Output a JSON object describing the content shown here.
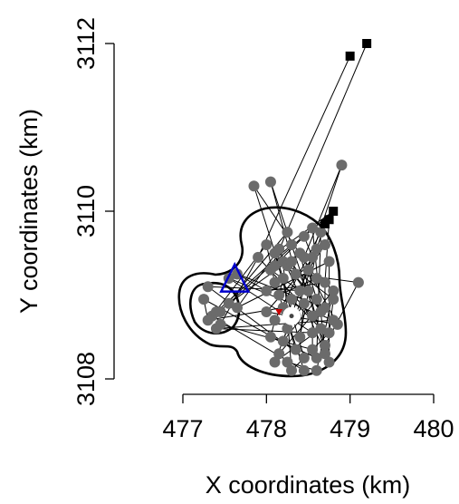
{
  "chart_data": {
    "type": "scatter",
    "xlabel": "X coordinates (km)",
    "ylabel": "Y coordinates (km)",
    "xlim": [
      476.95,
      480.05
    ],
    "ylim": [
      3107.95,
      3112.2
    ],
    "xticks": [
      477,
      478,
      479,
      480
    ],
    "yticks": [
      3108,
      3110,
      3112
    ],
    "xtick_labels": [
      "477",
      "478",
      "479",
      "480"
    ],
    "ytick_labels": [
      "3108",
      "3110",
      "3112"
    ],
    "grid": false,
    "colors": {
      "fixes": "#6b6b6b",
      "dispersal_fixes": "#000000",
      "site_marker": "#0000cc",
      "den_marker": "#cc0000",
      "contour": "#000000"
    },
    "series": [
      {
        "marker": "circle",
        "points": [
          [
            477.85,
            3110.3
          ],
          [
            478.05,
            3110.35
          ],
          [
            477.9,
            3109.45
          ],
          [
            478.05,
            3109.3
          ],
          [
            478.1,
            3109.5
          ],
          [
            478.2,
            3109.4
          ],
          [
            478.25,
            3109.35
          ],
          [
            478.0,
            3109.6
          ],
          [
            478.15,
            3109.55
          ],
          [
            478.3,
            3109.6
          ],
          [
            478.45,
            3109.7
          ],
          [
            478.55,
            3109.45
          ],
          [
            478.5,
            3109.3
          ],
          [
            478.6,
            3109.2
          ],
          [
            478.7,
            3109.15
          ],
          [
            478.8,
            3109.05
          ],
          [
            478.75,
            3109.4
          ],
          [
            478.7,
            3109.6
          ],
          [
            478.6,
            3109.55
          ],
          [
            478.4,
            3109.5
          ],
          [
            478.35,
            3109.25
          ],
          [
            478.2,
            3109.2
          ],
          [
            478.1,
            3109.15
          ],
          [
            478.0,
            3109.05
          ],
          [
            478.15,
            3109.0
          ],
          [
            478.3,
            3108.95
          ],
          [
            478.45,
            3108.9
          ],
          [
            478.55,
            3108.75
          ],
          [
            478.65,
            3108.6
          ],
          [
            478.75,
            3108.55
          ],
          [
            478.8,
            3108.7
          ],
          [
            478.7,
            3108.85
          ],
          [
            478.6,
            3108.95
          ],
          [
            478.5,
            3109.05
          ],
          [
            478.4,
            3109.05
          ],
          [
            478.35,
            3108.75
          ],
          [
            478.25,
            3108.6
          ],
          [
            478.2,
            3108.45
          ],
          [
            478.15,
            3108.3
          ],
          [
            478.25,
            3108.2
          ],
          [
            478.35,
            3108.35
          ],
          [
            478.45,
            3108.25
          ],
          [
            478.55,
            3108.35
          ],
          [
            478.6,
            3108.25
          ],
          [
            478.7,
            3108.4
          ],
          [
            478.75,
            3108.2
          ],
          [
            478.6,
            3108.1
          ],
          [
            478.45,
            3108.1
          ],
          [
            478.3,
            3108.1
          ],
          [
            478.1,
            3108.2
          ],
          [
            478.05,
            3108.5
          ],
          [
            478.1,
            3108.7
          ],
          [
            478.0,
            3108.8
          ],
          [
            478.2,
            3108.85
          ],
          [
            478.55,
            3108.55
          ],
          [
            478.65,
            3108.8
          ],
          [
            478.8,
            3108.95
          ],
          [
            478.85,
            3108.65
          ],
          [
            478.7,
            3108.3
          ],
          [
            478.4,
            3108.5
          ],
          [
            477.3,
            3109.1
          ],
          [
            477.25,
            3108.95
          ],
          [
            477.35,
            3108.75
          ],
          [
            477.4,
            3108.6
          ],
          [
            477.3,
            3108.7
          ],
          [
            477.45,
            3108.8
          ],
          [
            477.55,
            3108.9
          ],
          [
            477.45,
            3108.65
          ],
          [
            477.4,
            3108.8
          ],
          [
            477.65,
            3108.85
          ],
          [
            477.65,
            3109.25
          ],
          [
            477.55,
            3109.2
          ],
          [
            478.9,
            3110.55
          ],
          [
            479.1,
            3109.15
          ],
          [
            478.65,
            3109.75
          ],
          [
            478.55,
            3109.8
          ],
          [
            478.25,
            3109.75
          ],
          [
            478.45,
            3109.45
          ],
          [
            478.3,
            3109.4
          ],
          [
            478.1,
            3109.35
          ]
        ]
      },
      {
        "marker": "square",
        "points": [
          [
            479.0,
            3111.85
          ],
          [
            479.2,
            3112.0
          ],
          [
            478.8,
            3110.0
          ],
          [
            478.75,
            3109.9
          ],
          [
            478.7,
            3109.85
          ]
        ]
      }
    ],
    "annotations": [
      {
        "marker": "triangle",
        "x": 477.62,
        "y": 3109.15
      },
      {
        "marker": "circle-dot",
        "x": 478.3,
        "y": 3108.75
      },
      {
        "marker": "small-triangle",
        "x": 478.15,
        "y": 3108.8
      }
    ]
  }
}
